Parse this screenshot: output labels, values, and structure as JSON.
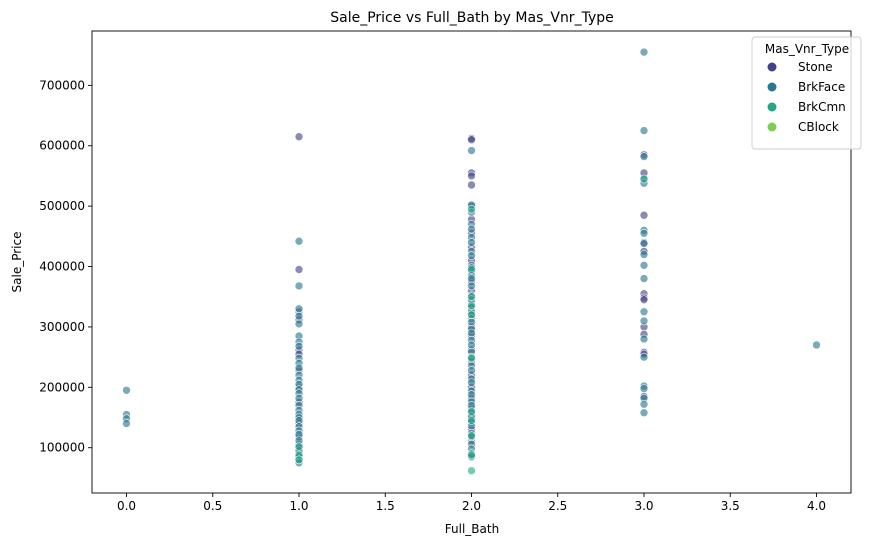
{
  "chart_data": {
    "type": "scatter",
    "title": "Sale_Price vs Full_Bath by Mas_Vnr_Type",
    "xlabel": "Full_Bath",
    "ylabel": "Sale_Price",
    "xlim": [
      -0.2,
      4.2
    ],
    "ylim": [
      25000,
      790000
    ],
    "xticks": [
      0.0,
      0.5,
      1.0,
      1.5,
      2.0,
      2.5,
      3.0,
      3.5,
      4.0
    ],
    "xtick_labels": [
      "0.0",
      "0.5",
      "1.0",
      "1.5",
      "2.0",
      "2.5",
      "3.0",
      "3.5",
      "4.0"
    ],
    "yticks": [
      100000,
      200000,
      300000,
      400000,
      500000,
      600000,
      700000
    ],
    "ytick_labels": [
      "100000",
      "200000",
      "300000",
      "400000",
      "500000",
      "600000",
      "700000"
    ],
    "grid": false,
    "legend": {
      "title": "Mas_Vnr_Type",
      "placement": "top-right",
      "entries": [
        "Stone",
        "BrkFace",
        "BrkCmn",
        "CBlock"
      ]
    },
    "series": [
      {
        "name": "Stone",
        "color": "#414487",
        "points": [
          [
            1,
            615000
          ],
          [
            1,
            395000
          ],
          [
            1,
            325000
          ],
          [
            1,
            312000
          ],
          [
            1,
            262000
          ],
          [
            1,
            255000
          ],
          [
            1,
            228000
          ],
          [
            1,
            200000
          ],
          [
            1,
            175000
          ],
          [
            1,
            140000
          ],
          [
            1,
            118000
          ],
          [
            1,
            105000
          ],
          [
            1,
            90000
          ],
          [
            2,
            612000
          ],
          [
            2,
            610000
          ],
          [
            2,
            555000
          ],
          [
            2,
            550000
          ],
          [
            2,
            535000
          ],
          [
            2,
            500000
          ],
          [
            2,
            478000
          ],
          [
            2,
            455000
          ],
          [
            2,
            432000
          ],
          [
            2,
            410000
          ],
          [
            2,
            392000
          ],
          [
            2,
            375000
          ],
          [
            2,
            360000
          ],
          [
            2,
            338000
          ],
          [
            2,
            320000
          ],
          [
            2,
            300000
          ],
          [
            2,
            285000
          ],
          [
            2,
            262000
          ],
          [
            2,
            242000
          ],
          [
            2,
            220000
          ],
          [
            2,
            200000
          ],
          [
            2,
            182000
          ],
          [
            2,
            165000
          ],
          [
            2,
            148000
          ],
          [
            2,
            130000
          ],
          [
            2,
            112000
          ],
          [
            3,
            585000
          ],
          [
            3,
            555000
          ],
          [
            3,
            485000
          ],
          [
            3,
            440000
          ],
          [
            3,
            425000
          ],
          [
            3,
            355000
          ],
          [
            3,
            348000
          ],
          [
            3,
            345000
          ],
          [
            3,
            300000
          ],
          [
            3,
            288000
          ],
          [
            3,
            258000
          ],
          [
            3,
            255000
          ],
          [
            3,
            185000
          ]
        ]
      },
      {
        "name": "BrkFace",
        "color": "#2a788e",
        "points": [
          [
            0,
            195000
          ],
          [
            0,
            155000
          ],
          [
            0,
            148000
          ],
          [
            0,
            140000
          ],
          [
            1,
            442000
          ],
          [
            1,
            368000
          ],
          [
            1,
            330000
          ],
          [
            1,
            318000
          ],
          [
            1,
            305000
          ],
          [
            1,
            285000
          ],
          [
            1,
            275000
          ],
          [
            1,
            268000
          ],
          [
            1,
            248000
          ],
          [
            1,
            240000
          ],
          [
            1,
            232000
          ],
          [
            1,
            220000
          ],
          [
            1,
            212000
          ],
          [
            1,
            205000
          ],
          [
            1,
            196000
          ],
          [
            1,
            190000
          ],
          [
            1,
            182000
          ],
          [
            1,
            170000
          ],
          [
            1,
            162000
          ],
          [
            1,
            155000
          ],
          [
            1,
            150000
          ],
          [
            1,
            145000
          ],
          [
            1,
            135000
          ],
          [
            1,
            128000
          ],
          [
            1,
            122000
          ],
          [
            1,
            112000
          ],
          [
            1,
            100000
          ],
          [
            1,
            95000
          ],
          [
            1,
            85000
          ],
          [
            1,
            80000
          ],
          [
            1,
            75000
          ],
          [
            2,
            592000
          ],
          [
            2,
            502000
          ],
          [
            2,
            490000
          ],
          [
            2,
            470000
          ],
          [
            2,
            462000
          ],
          [
            2,
            448000
          ],
          [
            2,
            440000
          ],
          [
            2,
            425000
          ],
          [
            2,
            418000
          ],
          [
            2,
            402000
          ],
          [
            2,
            398000
          ],
          [
            2,
            385000
          ],
          [
            2,
            380000
          ],
          [
            2,
            368000
          ],
          [
            2,
            352000
          ],
          [
            2,
            345000
          ],
          [
            2,
            332000
          ],
          [
            2,
            326000
          ],
          [
            2,
            314000
          ],
          [
            2,
            308000
          ],
          [
            2,
            296000
          ],
          [
            2,
            290000
          ],
          [
            2,
            278000
          ],
          [
            2,
            270000
          ],
          [
            2,
            258000
          ],
          [
            2,
            250000
          ],
          [
            2,
            236000
          ],
          [
            2,
            228000
          ],
          [
            2,
            214000
          ],
          [
            2,
            208000
          ],
          [
            2,
            194000
          ],
          [
            2,
            188000
          ],
          [
            2,
            176000
          ],
          [
            2,
            170000
          ],
          [
            2,
            158000
          ],
          [
            2,
            152000
          ],
          [
            2,
            142000
          ],
          [
            2,
            136000
          ],
          [
            2,
            124000
          ],
          [
            2,
            118000
          ],
          [
            2,
            106000
          ],
          [
            2,
            98000
          ],
          [
            2,
            90000
          ],
          [
            2,
            85000
          ],
          [
            3,
            755000
          ],
          [
            3,
            625000
          ],
          [
            3,
            582000
          ],
          [
            3,
            545000
          ],
          [
            3,
            538000
          ],
          [
            3,
            460000
          ],
          [
            3,
            455000
          ],
          [
            3,
            438000
          ],
          [
            3,
            420000
          ],
          [
            3,
            402000
          ],
          [
            3,
            380000
          ],
          [
            3,
            325000
          ],
          [
            3,
            310000
          ],
          [
            3,
            280000
          ],
          [
            3,
            250000
          ],
          [
            3,
            202000
          ],
          [
            3,
            198000
          ],
          [
            3,
            182000
          ],
          [
            3,
            172000
          ],
          [
            3,
            158000
          ],
          [
            4,
            270000
          ]
        ]
      },
      {
        "name": "BrkCmn",
        "color": "#22a884",
        "points": [
          [
            1,
            102000
          ],
          [
            1,
            88000
          ],
          [
            1,
            80000
          ],
          [
            2,
            495000
          ],
          [
            2,
            395000
          ],
          [
            2,
            350000
          ],
          [
            2,
            335000
          ],
          [
            2,
            320000
          ],
          [
            2,
            248000
          ],
          [
            2,
            160000
          ],
          [
            2,
            145000
          ],
          [
            2,
            120000
          ],
          [
            2,
            88000
          ],
          [
            2,
            62000
          ],
          [
            3,
            545000
          ]
        ]
      },
      {
        "name": "CBlock",
        "color": "#7ad151",
        "points": []
      }
    ]
  }
}
